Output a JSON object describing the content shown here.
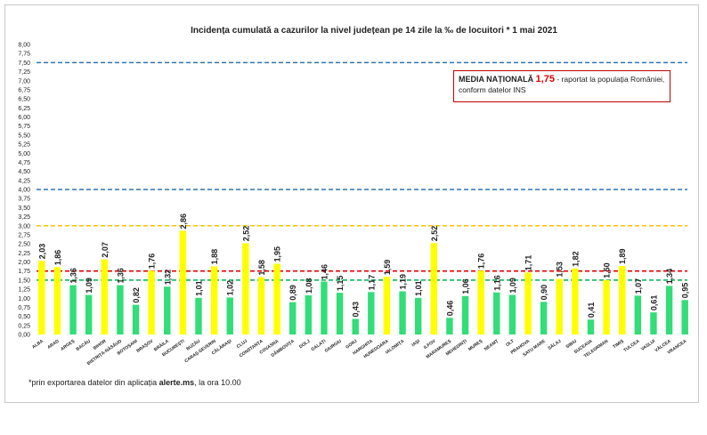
{
  "chart_data": {
    "type": "bar",
    "title": "Incidența cumulată a cazurilor la nivel județean pe 14 zile la ‰ de locuitori *  1 mai 2021",
    "xlabel": "",
    "ylabel": "",
    "ylim": [
      0,
      8
    ],
    "y_tick_step": 0.25,
    "categories": [
      "ALBA",
      "ARAD",
      "ARGEȘ",
      "BACĂU",
      "BIHOR",
      "BISTRIȚA-NĂSĂUD",
      "BOTOȘANI",
      "BRAȘOV",
      "BRĂILA",
      "BUCUREȘTI",
      "BUZĂU",
      "CARAȘ-SEVERIN",
      "CĂLĂRAȘI",
      "CLUJ",
      "CONSTANȚA",
      "COVASNA",
      "DÂMBOVIȚA",
      "DOLJ",
      "GALAȚI",
      "GIURGIU",
      "GORJ",
      "HARGHITA",
      "HUNEDOARA",
      "IALOMIȚA",
      "IAȘI",
      "ILFOV",
      "MARAMUREȘ",
      "MEHEDINȚI",
      "MUREȘ",
      "NEAMȚ",
      "OLT",
      "PRAHOVA",
      "SATU MARE",
      "SĂLAJ",
      "SIBIU",
      "SUCEAVA",
      "TELEORMAN",
      "TIMIȘ",
      "TULCEA",
      "VASLUI",
      "VÂLCEA",
      "VRANCEA"
    ],
    "values": [
      2.03,
      1.86,
      1.36,
      1.09,
      2.07,
      1.36,
      0.82,
      1.76,
      1.32,
      2.86,
      1.01,
      1.88,
      1.02,
      2.52,
      1.58,
      1.95,
      0.89,
      1.08,
      1.46,
      1.15,
      0.43,
      1.17,
      1.59,
      1.19,
      1.01,
      2.52,
      0.46,
      1.06,
      1.76,
      1.16,
      1.09,
      1.71,
      0.9,
      1.53,
      1.82,
      0.41,
      1.5,
      1.89,
      1.07,
      0.61,
      1.34,
      0.95
    ],
    "value_labels": [
      "2,03",
      "1,86",
      "1,36",
      "1,09",
      "2,07",
      "1,36",
      "0,82",
      "1,76",
      "1,32",
      "2,86",
      "1,01",
      "1,88",
      "1,02",
      "2,52",
      "1,58",
      "1,95",
      "0,89",
      "1,08",
      "1,46",
      "1,15",
      "0,43",
      "1,17",
      "1,59",
      "1,19",
      "1,01",
      "2,52",
      "0,46",
      "1,06",
      "1,76",
      "1,16",
      "1,09",
      "1,71",
      "0,90",
      "1,53",
      "1,82",
      "0,41",
      "1,50",
      "1,89",
      "1,07",
      "0,61",
      "1,34",
      "0,95"
    ],
    "bar_colors": [
      "yellow",
      "yellow",
      "green",
      "green",
      "yellow",
      "green",
      "green",
      "yellow",
      "green",
      "yellow",
      "green",
      "yellow",
      "green",
      "yellow",
      "yellow",
      "yellow",
      "green",
      "green",
      "green",
      "green",
      "green",
      "green",
      "yellow",
      "green",
      "green",
      "yellow",
      "green",
      "green",
      "yellow",
      "green",
      "green",
      "yellow",
      "green",
      "yellow",
      "yellow",
      "green",
      "yellow",
      "yellow",
      "green",
      "green",
      "green",
      "green"
    ],
    "reference_lines": [
      {
        "value": 7.5,
        "color": "#2e75b6"
      },
      {
        "value": 4.0,
        "color": "#2e75b6"
      },
      {
        "value": 3.0,
        "color": "#ffc000"
      },
      {
        "value": 1.75,
        "color": "#e00000"
      },
      {
        "value": 1.5,
        "color": "#00b050"
      }
    ],
    "grid": false,
    "legend": "none"
  },
  "colors": {
    "yellow": "#ffff00",
    "green": "#33dd77",
    "accent_red": "#e00000"
  },
  "note": {
    "prefix": "MEDIA NAȚIONALĂ",
    "value": "1,75",
    "suffix": "- raportat la populația României,",
    "line2": "conform datelor INS"
  },
  "footnote": {
    "prefix": "*prin exportarea datelor din aplicația",
    "source": "alerte.ms",
    "suffix": ", la ora 10.00"
  }
}
